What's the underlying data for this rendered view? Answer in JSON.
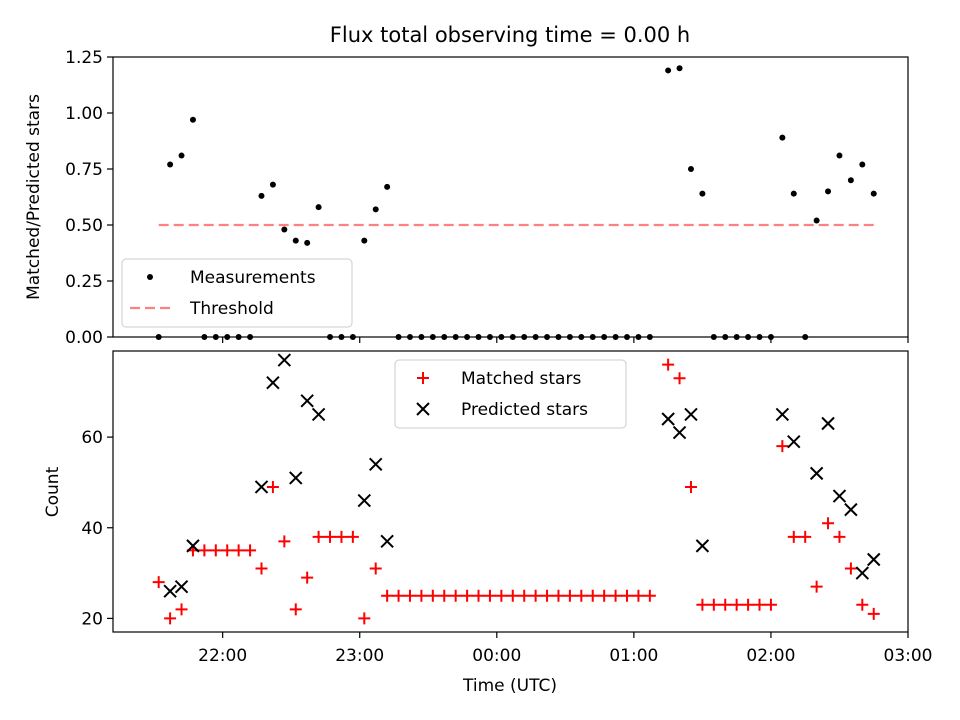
{
  "chart_data": [
    {
      "type": "scatter",
      "title": "Flux total observing time = 0.00 h",
      "ylabel": "Matched/Predicted stars",
      "xlabel": "",
      "ylim": [
        0,
        1.25
      ],
      "yticks": [
        0.0,
        0.25,
        0.5,
        0.75,
        1.0,
        1.25
      ],
      "ytick_labels": [
        "0.00",
        "0.25",
        "0.50",
        "0.75",
        "1.00",
        "1.25"
      ],
      "xlim": [
        "21:12",
        "03:00"
      ],
      "xticks": [
        "22:00",
        "23:00",
        "00:00",
        "01:00",
        "02:00",
        "03:00"
      ],
      "grid": false,
      "legend_position": "lower-left",
      "series": [
        {
          "name": "Measurements",
          "marker": "dot",
          "color": "#000000",
          "points": [
            [
              "21:32",
              0.0
            ],
            [
              "21:37",
              0.77
            ],
            [
              "21:42",
              0.81
            ],
            [
              "21:47",
              0.97
            ],
            [
              "21:52",
              0.0
            ],
            [
              "21:57",
              0.0
            ],
            [
              "22:02",
              0.0
            ],
            [
              "22:07",
              0.0
            ],
            [
              "22:12",
              0.0
            ],
            [
              "22:17",
              0.63
            ],
            [
              "22:22",
              0.68
            ],
            [
              "22:27",
              0.48
            ],
            [
              "22:32",
              0.43
            ],
            [
              "22:37",
              0.42
            ],
            [
              "22:42",
              0.58
            ],
            [
              "22:47",
              0.0
            ],
            [
              "22:52",
              0.0
            ],
            [
              "22:57",
              0.0
            ],
            [
              "23:02",
              0.43
            ],
            [
              "23:07",
              0.57
            ],
            [
              "23:12",
              0.67
            ],
            [
              "23:17",
              0.0
            ],
            [
              "23:22",
              0.0
            ],
            [
              "23:27",
              0.0
            ],
            [
              "23:32",
              0.0
            ],
            [
              "23:37",
              0.0
            ],
            [
              "23:42",
              0.0
            ],
            [
              "23:47",
              0.0
            ],
            [
              "23:52",
              0.0
            ],
            [
              "23:57",
              0.0
            ],
            [
              "00:02",
              0.0
            ],
            [
              "00:07",
              0.0
            ],
            [
              "00:12",
              0.0
            ],
            [
              "00:17",
              0.0
            ],
            [
              "00:22",
              0.0
            ],
            [
              "00:27",
              0.0
            ],
            [
              "00:32",
              0.0
            ],
            [
              "00:37",
              0.0
            ],
            [
              "00:42",
              0.0
            ],
            [
              "00:47",
              0.0
            ],
            [
              "00:52",
              0.0
            ],
            [
              "00:57",
              0.0
            ],
            [
              "01:02",
              0.0
            ],
            [
              "01:07",
              0.0
            ],
            [
              "01:15",
              1.19
            ],
            [
              "01:20",
              1.2
            ],
            [
              "01:25",
              0.75
            ],
            [
              "01:30",
              0.64
            ],
            [
              "01:35",
              0.0
            ],
            [
              "01:40",
              0.0
            ],
            [
              "01:45",
              0.0
            ],
            [
              "01:50",
              0.0
            ],
            [
              "01:55",
              0.0
            ],
            [
              "02:00",
              0.0
            ],
            [
              "02:05",
              0.89
            ],
            [
              "02:10",
              0.64
            ],
            [
              "02:15",
              0.0
            ],
            [
              "02:20",
              0.52
            ],
            [
              "02:25",
              0.65
            ],
            [
              "02:30",
              0.81
            ],
            [
              "02:35",
              0.7
            ],
            [
              "02:40",
              0.77
            ],
            [
              "02:45",
              0.64
            ]
          ]
        },
        {
          "name": "Threshold",
          "marker": "dashed-line",
          "color": "#ff8080",
          "points": [
            [
              "21:32",
              0.5
            ],
            [
              "02:45",
              0.5
            ]
          ]
        }
      ]
    },
    {
      "type": "scatter",
      "title": "",
      "ylabel": "Count",
      "xlabel": "Time (UTC)",
      "ylim": [
        17,
        79
      ],
      "yticks": [
        20,
        40,
        60
      ],
      "ytick_labels": [
        "20",
        "40",
        "60"
      ],
      "xlim": [
        "21:12",
        "03:00"
      ],
      "xticks": [
        "22:00",
        "23:00",
        "00:00",
        "01:00",
        "02:00",
        "03:00"
      ],
      "xtick_labels": [
        "22:00",
        "23:00",
        "00:00",
        "01:00",
        "02:00",
        "03:00"
      ],
      "grid": false,
      "legend_position": "top-center",
      "series": [
        {
          "name": "Matched stars",
          "marker": "plus",
          "color": "#ff0000",
          "points": [
            [
              "21:32",
              28
            ],
            [
              "21:37",
              20
            ],
            [
              "21:42",
              22
            ],
            [
              "21:47",
              35
            ],
            [
              "21:52",
              35
            ],
            [
              "21:57",
              35
            ],
            [
              "22:02",
              35
            ],
            [
              "22:07",
              35
            ],
            [
              "22:12",
              35
            ],
            [
              "22:17",
              31
            ],
            [
              "22:22",
              49
            ],
            [
              "22:27",
              37
            ],
            [
              "22:32",
              22
            ],
            [
              "22:37",
              29
            ],
            [
              "22:42",
              38
            ],
            [
              "22:47",
              38
            ],
            [
              "22:52",
              38
            ],
            [
              "22:57",
              38
            ],
            [
              "23:02",
              20
            ],
            [
              "23:07",
              31
            ],
            [
              "23:12",
              25
            ],
            [
              "23:17",
              25
            ],
            [
              "23:22",
              25
            ],
            [
              "23:27",
              25
            ],
            [
              "23:32",
              25
            ],
            [
              "23:37",
              25
            ],
            [
              "23:42",
              25
            ],
            [
              "23:47",
              25
            ],
            [
              "23:52",
              25
            ],
            [
              "23:57",
              25
            ],
            [
              "00:02",
              25
            ],
            [
              "00:07",
              25
            ],
            [
              "00:12",
              25
            ],
            [
              "00:17",
              25
            ],
            [
              "00:22",
              25
            ],
            [
              "00:27",
              25
            ],
            [
              "00:32",
              25
            ],
            [
              "00:37",
              25
            ],
            [
              "00:42",
              25
            ],
            [
              "00:47",
              25
            ],
            [
              "00:52",
              25
            ],
            [
              "00:57",
              25
            ],
            [
              "01:02",
              25
            ],
            [
              "01:07",
              25
            ],
            [
              "01:15",
              76
            ],
            [
              "01:20",
              73
            ],
            [
              "01:25",
              49
            ],
            [
              "01:30",
              23
            ],
            [
              "01:35",
              23
            ],
            [
              "01:40",
              23
            ],
            [
              "01:45",
              23
            ],
            [
              "01:50",
              23
            ],
            [
              "01:55",
              23
            ],
            [
              "02:00",
              23
            ],
            [
              "02:05",
              58
            ],
            [
              "02:10",
              38
            ],
            [
              "02:15",
              38
            ],
            [
              "02:20",
              27
            ],
            [
              "02:25",
              41
            ],
            [
              "02:30",
              38
            ],
            [
              "02:35",
              31
            ],
            [
              "02:40",
              23
            ],
            [
              "02:45",
              21
            ]
          ]
        },
        {
          "name": "Predicted stars",
          "marker": "x",
          "color": "#000000",
          "points": [
            [
              "21:37",
              26
            ],
            [
              "21:42",
              27
            ],
            [
              "21:47",
              36
            ],
            [
              "22:17",
              49
            ],
            [
              "22:22",
              72
            ],
            [
              "22:27",
              77
            ],
            [
              "22:32",
              51
            ],
            [
              "22:37",
              68
            ],
            [
              "22:42",
              65
            ],
            [
              "23:02",
              46
            ],
            [
              "23:07",
              54
            ],
            [
              "23:12",
              37
            ],
            [
              "01:15",
              64
            ],
            [
              "01:20",
              61
            ],
            [
              "01:25",
              65
            ],
            [
              "01:30",
              36
            ],
            [
              "02:05",
              65
            ],
            [
              "02:10",
              59
            ],
            [
              "02:20",
              52
            ],
            [
              "02:25",
              63
            ],
            [
              "02:30",
              47
            ],
            [
              "02:35",
              44
            ],
            [
              "02:40",
              30
            ],
            [
              "02:45",
              33
            ]
          ]
        }
      ]
    }
  ]
}
